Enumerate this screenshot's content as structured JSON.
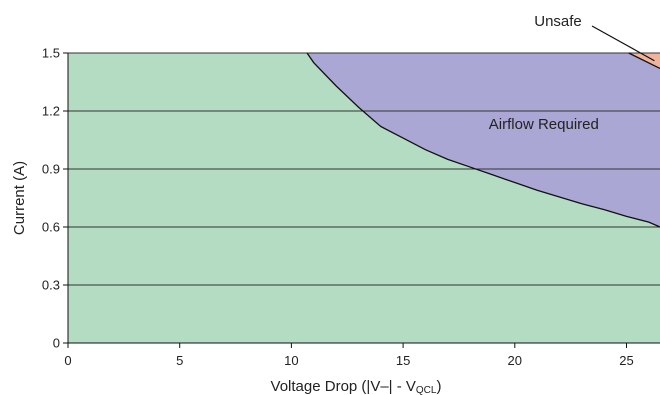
{
  "chart_data": {
    "type": "area",
    "xlabel_main": "Voltage Drop (|V–| - V",
    "xlabel_sub": "QCL",
    "xlabel_end": ")",
    "ylabel": "Current (A)",
    "xlim": [
      0,
      26.5
    ],
    "ylim": [
      0,
      1.5
    ],
    "x_ticks": [
      0,
      5,
      10,
      15,
      20,
      25
    ],
    "x_tick_labels": [
      "0",
      "5",
      "10",
      "15",
      "20",
      "25"
    ],
    "y_ticks": [
      0,
      0.3,
      0.6,
      0.9,
      1.2,
      1.5
    ],
    "y_tick_labels": [
      "0",
      "0.3",
      "0.6",
      "0.9",
      "1.2",
      "1.5"
    ],
    "grid": "horizontal",
    "regions": [
      {
        "label": "",
        "color": "#b3dcc3"
      },
      {
        "label": "Airflow Required",
        "color": "#aba7d5"
      },
      {
        "label": "Unsafe",
        "color": "#f0b49a"
      }
    ],
    "airflow_boundary": {
      "x": [
        10.7,
        11.0,
        12.0,
        13.0,
        14.0,
        15.0,
        16.0,
        17.0,
        18.0,
        19.0,
        20.0,
        21.0,
        22.0,
        23.0,
        24.0,
        25.0,
        26.0,
        26.5
      ],
      "y": [
        1.5,
        1.45,
        1.33,
        1.22,
        1.12,
        1.06,
        1.0,
        0.95,
        0.91,
        0.87,
        0.83,
        0.79,
        0.755,
        0.72,
        0.69,
        0.655,
        0.625,
        0.6
      ]
    },
    "unsafe_boundary": {
      "x": [
        25.1,
        26.5
      ],
      "y": [
        1.5,
        1.42
      ]
    }
  }
}
